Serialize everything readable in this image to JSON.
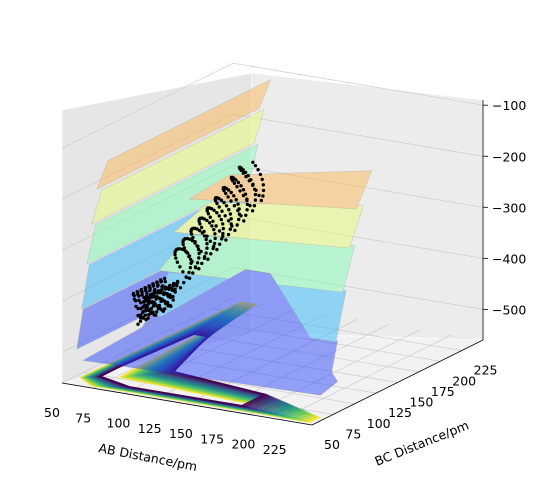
{
  "chart_data": {
    "type": "surface3d",
    "title": "",
    "xlabel": "AB Distance/pm",
    "ylabel": "BC Distance/pm",
    "zlabel": "",
    "x_ticks": [
      50,
      75,
      100,
      125,
      150,
      175,
      200,
      225
    ],
    "y_ticks": [
      50,
      75,
      100,
      125,
      150,
      175,
      200,
      225
    ],
    "z_ticks": [
      -100,
      -200,
      -300,
      -400,
      -500
    ],
    "xlim": [
      50,
      250
    ],
    "ylim": [
      50,
      250
    ],
    "zlim": [
      -560,
      -80
    ],
    "grid": true,
    "surface_colormap": "jet",
    "contour_colormap": "viridis",
    "colors": {
      "pane": "#f2f2f2",
      "grid": "#cccccc",
      "trajectory": "#000000",
      "contour_low": "#440154",
      "contour_high": "#fde725"
    },
    "trajectory": {
      "description_points": "AB-BC oscillating trajectory on the surface",
      "ab_start": 75,
      "ab_end": 95,
      "bc_start": 230,
      "bc_end": 95,
      "z_min": -490,
      "z_max": -280
    }
  }
}
